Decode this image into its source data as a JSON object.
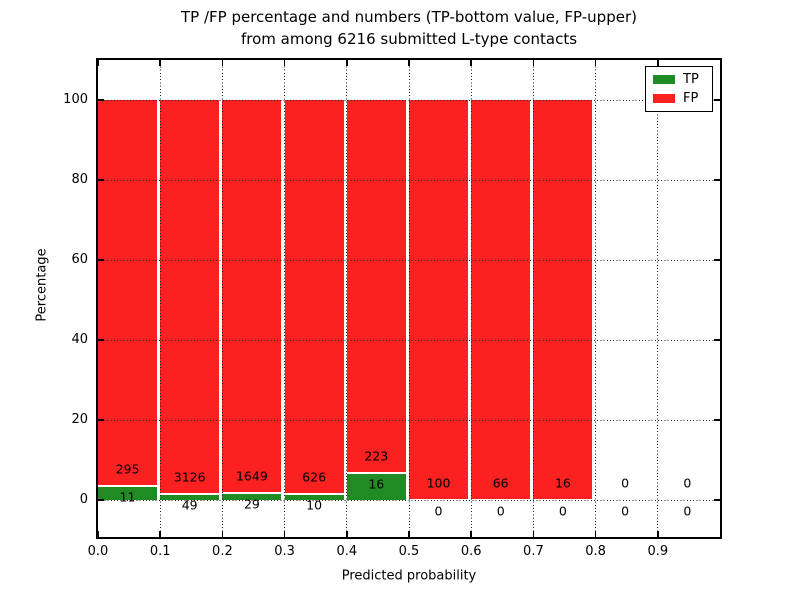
{
  "title": "TP /FP percentage and numbers (TP-bottom value, FP-upper)\nfrom among 6216 submitted L-type contacts",
  "axes": {
    "xlabel": "Predicted probability",
    "ylabel": "Percentage",
    "xticks": [
      "0.0",
      "0.1",
      "0.2",
      "0.3",
      "0.4",
      "0.5",
      "0.6",
      "0.7",
      "0.8",
      "0.9"
    ],
    "yticks": [
      "0",
      "20",
      "40",
      "60",
      "80",
      "100"
    ],
    "ytick_values": [
      0,
      20,
      40,
      60,
      80,
      100
    ],
    "grid_style": "dotted"
  },
  "legend": {
    "position": "upper-right",
    "items": [
      {
        "label": "TP",
        "color": "#208b22"
      },
      {
        "label": "FP",
        "color": "#fb2121"
      }
    ]
  },
  "chart_data": {
    "type": "bar",
    "stacked": true,
    "title": "TP /FP percentage and numbers (TP-bottom value, FP-upper) from among 6216 submitted L-type contacts",
    "xlabel": "Predicted probability",
    "ylabel": "Percentage",
    "xlim": [
      0.0,
      1.0
    ],
    "ylim": [
      -9.25,
      110
    ],
    "bin_edges": [
      0.0,
      0.1,
      0.2,
      0.3,
      0.4,
      0.5,
      0.6,
      0.7,
      0.8,
      0.9,
      1.0
    ],
    "categories": [
      "0.0-0.1",
      "0.1-0.2",
      "0.2-0.3",
      "0.3-0.4",
      "0.4-0.5",
      "0.5-0.6",
      "0.6-0.7",
      "0.7-0.8",
      "0.8-0.9",
      "0.9-1.0"
    ],
    "series": [
      {
        "name": "TP",
        "color": "#208b22",
        "counts": [
          11,
          49,
          29,
          10,
          16,
          0,
          0,
          0,
          0,
          0
        ]
      },
      {
        "name": "FP",
        "color": "#fb2121",
        "counts": [
          295,
          3126,
          1649,
          626,
          223,
          100,
          66,
          16,
          0,
          0
        ]
      }
    ],
    "percent_tp": [
      3.59,
      1.54,
      1.73,
      1.57,
      6.69,
      0.0,
      0.0,
      0.0,
      0.0,
      0.0
    ],
    "percent_fp": [
      96.41,
      98.46,
      98.27,
      98.43,
      93.31,
      100.0,
      100.0,
      100.0,
      0.0,
      0.0
    ],
    "total_contacts": 6216
  }
}
